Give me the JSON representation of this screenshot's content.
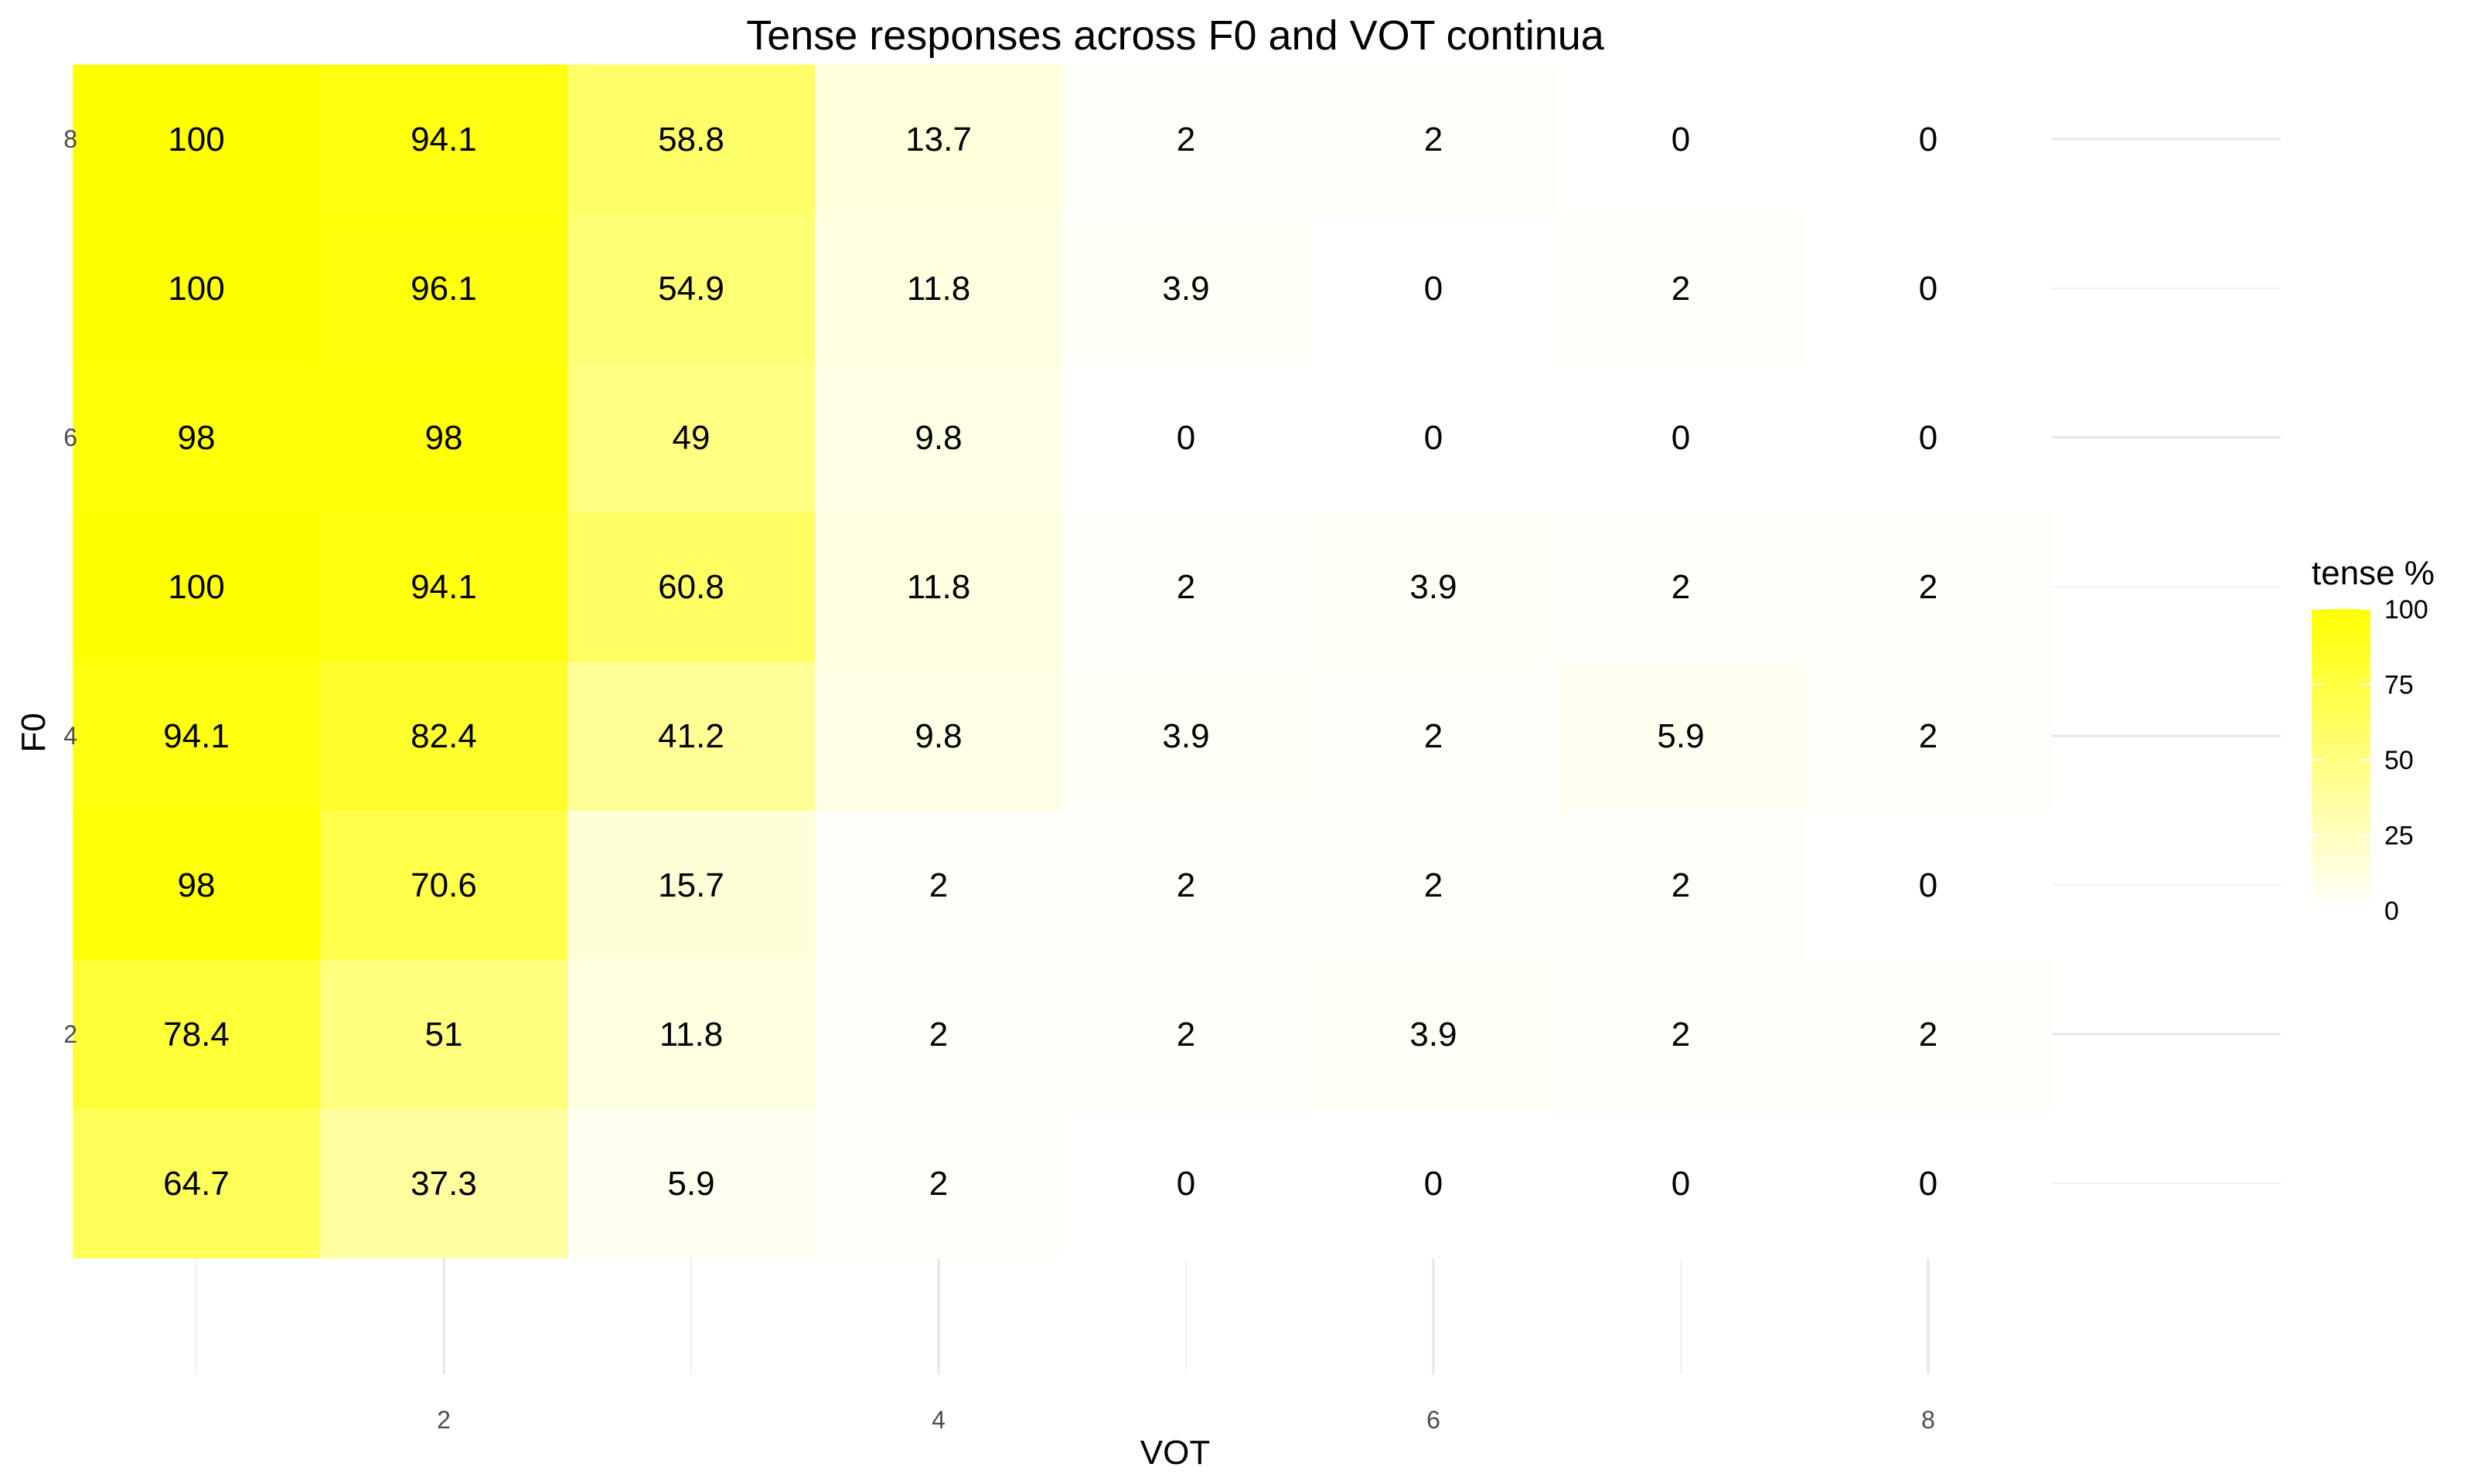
{
  "chart_data": {
    "type": "heatmap",
    "title": "Tense responses across F0 and VOT continua",
    "xlabel": "VOT",
    "ylabel": "F0",
    "x": [
      1,
      2,
      3,
      4,
      5,
      6,
      7,
      8
    ],
    "y": [
      1,
      2,
      3,
      4,
      5,
      6,
      7,
      8
    ],
    "xlim": [
      0.5,
      8.5
    ],
    "ylim": [
      0.5,
      8.5
    ],
    "x_ticks": [
      2,
      4,
      6,
      8
    ],
    "y_ticks": [
      2,
      4,
      6,
      8
    ],
    "x_tick_labels": [
      "2",
      "4",
      "6",
      "8"
    ],
    "y_tick_labels": [
      "2",
      "4",
      "6",
      "8"
    ],
    "values_by_f0": {
      "8": [
        100,
        94.1,
        58.8,
        13.7,
        2,
        2,
        0,
        0
      ],
      "7": [
        100,
        96.1,
        54.9,
        11.8,
        3.9,
        0,
        2,
        0
      ],
      "6": [
        98,
        98,
        49,
        9.8,
        0,
        0,
        0,
        0
      ],
      "5": [
        100,
        94.1,
        60.8,
        11.8,
        2,
        3.9,
        2,
        2
      ],
      "4": [
        94.1,
        82.4,
        41.2,
        9.8,
        3.9,
        2,
        5.9,
        2
      ],
      "3": [
        98,
        70.6,
        15.7,
        2,
        2,
        2,
        2,
        0
      ],
      "2": [
        78.4,
        51,
        11.8,
        2,
        2,
        3.9,
        2,
        2
      ],
      "1": [
        64.7,
        37.3,
        5.9,
        2,
        0,
        0,
        0,
        0
      ]
    },
    "value_labels_by_f0": {
      "8": [
        "100",
        "94.1",
        "58.8",
        "13.7",
        "2",
        "2",
        "0",
        "0"
      ],
      "7": [
        "100",
        "96.1",
        "54.9",
        "11.8",
        "3.9",
        "0",
        "2",
        "0"
      ],
      "6": [
        "98",
        "98",
        "49",
        "9.8",
        "0",
        "0",
        "0",
        "0"
      ],
      "5": [
        "100",
        "94.1",
        "60.8",
        "11.8",
        "2",
        "3.9",
        "2",
        "2"
      ],
      "4": [
        "94.1",
        "82.4",
        "41.2",
        "9.8",
        "3.9",
        "2",
        "5.9",
        "2"
      ],
      "3": [
        "98",
        "70.6",
        "15.7",
        "2",
        "2",
        "2",
        "2",
        "0"
      ],
      "2": [
        "78.4",
        "51",
        "11.8",
        "2",
        "2",
        "3.9",
        "2",
        "2"
      ],
      "1": [
        "64.7",
        "37.3",
        "5.9",
        "2",
        "0",
        "0",
        "0",
        "0"
      ]
    },
    "color_scale": {
      "low": "#ffffff",
      "high": "#ffff00",
      "range": [
        0,
        100
      ]
    },
    "legend": {
      "title": "tense %",
      "position": "right",
      "breaks": [
        0,
        25,
        50,
        75,
        100
      ],
      "break_labels": [
        "0",
        "25",
        "50",
        "75",
        "100"
      ]
    },
    "grid": true
  }
}
